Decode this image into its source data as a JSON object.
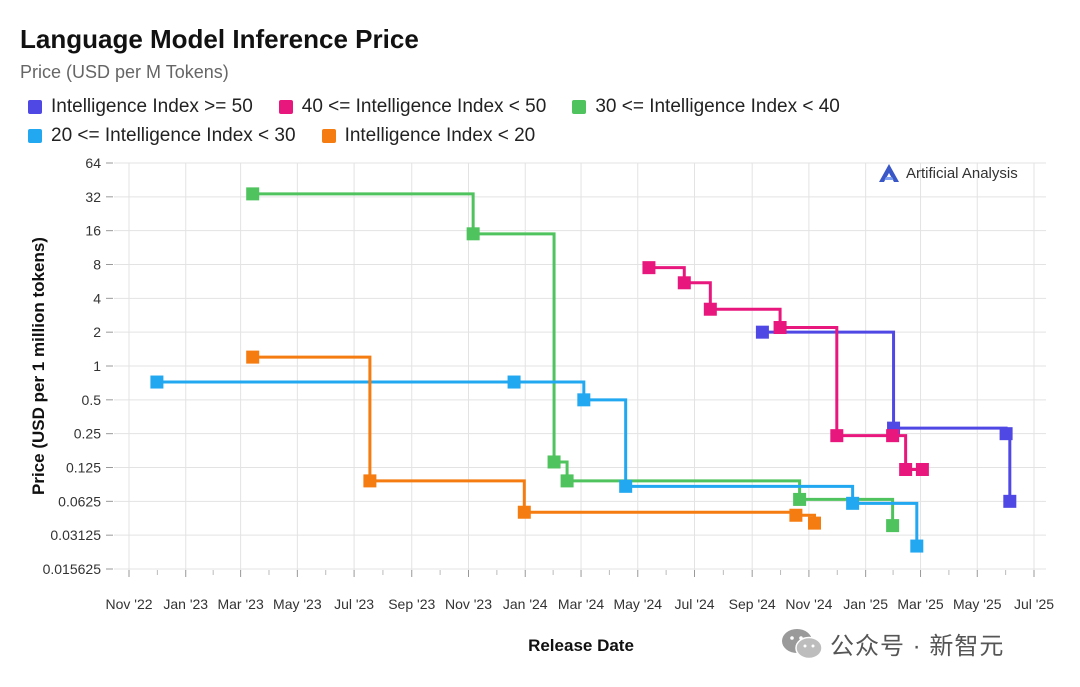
{
  "chart_data": {
    "type": "line",
    "step": true,
    "title": "Language Model Inference Price",
    "subtitle": "Price (USD per M Tokens)",
    "xlabel": "Release Date",
    "ylabel": "Price (USD per 1 million tokens)",
    "y_scale": "log2",
    "ylim": [
      0.015625,
      64
    ],
    "y_ticks": [
      "64",
      "32",
      "16",
      "8",
      "4",
      "2",
      "1",
      "0.5",
      "0.25",
      "0.125",
      "0.0625",
      "0.03125",
      "0.015625"
    ],
    "y_tick_values": [
      64,
      32,
      16,
      8,
      4,
      2,
      1,
      0.5,
      0.25,
      0.125,
      0.0625,
      0.03125,
      0.015625
    ],
    "x_range": [
      "2022-11-01",
      "2025-07-01"
    ],
    "x_ticks": [
      "Nov '22",
      "Jan '23",
      "Mar '23",
      "May '23",
      "Jul '23",
      "Sep '23",
      "Nov '23",
      "Jan '24",
      "Mar '24",
      "May '24",
      "Jul '24",
      "Sep '24",
      "Nov '24",
      "Jan '25",
      "Mar '25",
      "May '25",
      "Jul '25"
    ],
    "x_tick_dates": [
      "2022-11-01",
      "2023-01-01",
      "2023-03-01",
      "2023-05-01",
      "2023-07-01",
      "2023-09-01",
      "2023-11-01",
      "2024-01-01",
      "2024-03-01",
      "2024-05-01",
      "2024-07-01",
      "2024-09-01",
      "2024-11-01",
      "2025-01-01",
      "2025-03-01",
      "2025-05-01",
      "2025-07-01"
    ],
    "legend_position": "top",
    "series": [
      {
        "name": "Intelligence Index >= 50",
        "color": "#5048e5",
        "points": [
          [
            "2024-09-12",
            2
          ],
          [
            "2025-01-31",
            0.28
          ],
          [
            "2025-06-01",
            0.25
          ],
          [
            "2025-06-05",
            0.0625
          ]
        ]
      },
      {
        "name": "40 <= Intelligence Index < 50",
        "color": "#e8177d",
        "points": [
          [
            "2024-05-13",
            7.5
          ],
          [
            "2024-06-20",
            5.5
          ],
          [
            "2024-07-18",
            3.2
          ],
          [
            "2024-10-01",
            2.2
          ],
          [
            "2024-12-01",
            0.24
          ],
          [
            "2025-01-30",
            0.24
          ],
          [
            "2025-02-13",
            0.12
          ],
          [
            "2025-03-03",
            0.12
          ]
        ]
      },
      {
        "name": "30 <= Intelligence Index < 40",
        "color": "#4fc35d",
        "points": [
          [
            "2023-03-14",
            34
          ],
          [
            "2023-11-06",
            15
          ],
          [
            "2024-02-01",
            0.14
          ],
          [
            "2024-02-15",
            0.095
          ],
          [
            "2024-10-22",
            0.065
          ],
          [
            "2025-01-30",
            0.038
          ]
        ]
      },
      {
        "name": "20 <= Intelligence Index < 30",
        "color": "#22a8f0",
        "points": [
          [
            "2022-12-01",
            0.72
          ],
          [
            "2023-12-20",
            0.72
          ],
          [
            "2024-03-04",
            0.5
          ],
          [
            "2024-04-18",
            0.085
          ],
          [
            "2024-12-18",
            0.06
          ],
          [
            "2025-02-25",
            0.025
          ]
        ]
      },
      {
        "name": "Intelligence Index < 20",
        "color": "#f57c10",
        "points": [
          [
            "2023-03-14",
            1.2
          ],
          [
            "2023-07-18",
            0.095
          ],
          [
            "2023-12-31",
            0.05
          ],
          [
            "2024-10-18",
            0.047
          ],
          [
            "2024-11-07",
            0.04
          ]
        ]
      }
    ]
  },
  "brand": {
    "label": "Artificial Analysis"
  },
  "watermark": {
    "label": "公众号 · 新智元"
  }
}
